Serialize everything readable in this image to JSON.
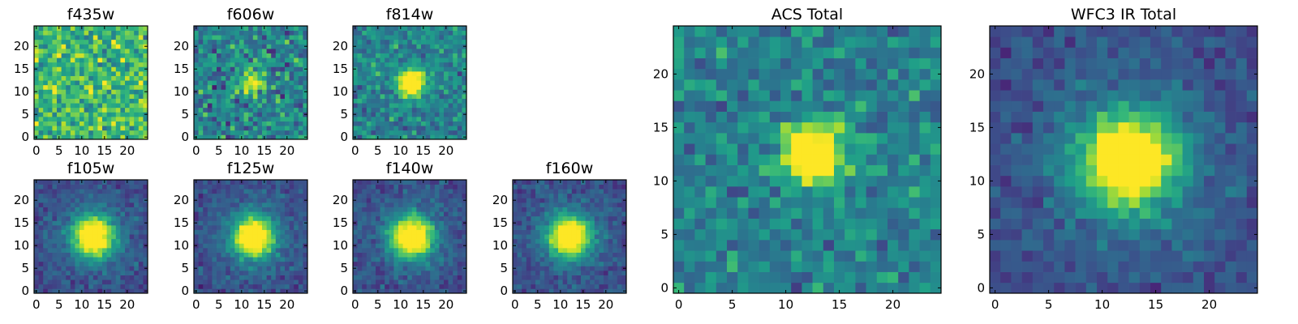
{
  "figure": {
    "colormap": "viridis",
    "pixel_grid": [
      25,
      25
    ]
  },
  "chart_data": [
    {
      "type": "heatmap",
      "title": "f435w",
      "grid": [
        25,
        25
      ],
      "source_center": [
        12.5,
        12.0
      ],
      "source_strength": "none",
      "noise": "high",
      "x_ticks": [
        0,
        5,
        10,
        15,
        20
      ],
      "y_ticks": [
        0,
        5,
        10,
        15,
        20
      ],
      "x_tick_labels": [
        "0",
        "5",
        "10",
        "15",
        "20"
      ],
      "y_tick_labels": [
        "0",
        "5",
        "10",
        "15",
        "20"
      ]
    },
    {
      "type": "heatmap",
      "title": "f606w",
      "grid": [
        25,
        25
      ],
      "source_center": [
        12.5,
        12.0
      ],
      "source_strength": "moderate",
      "noise": "high",
      "x_ticks": [
        0,
        5,
        10,
        15,
        20
      ],
      "y_ticks": [
        0,
        5,
        10,
        15,
        20
      ],
      "x_tick_labels": [
        "0",
        "5",
        "10",
        "15",
        "20"
      ],
      "y_tick_labels": [
        "0",
        "5",
        "10",
        "15",
        "20"
      ]
    },
    {
      "type": "heatmap",
      "title": "f814w",
      "grid": [
        25,
        25
      ],
      "source_center": [
        12.5,
        12.0
      ],
      "source_strength": "strong",
      "noise": "medium",
      "x_ticks": [
        0,
        5,
        10,
        15,
        20
      ],
      "y_ticks": [
        0,
        5,
        10,
        15,
        20
      ],
      "x_tick_labels": [
        "0",
        "5",
        "10",
        "15",
        "20"
      ],
      "y_tick_labels": [
        "0",
        "5",
        "10",
        "15",
        "20"
      ]
    },
    {
      "type": "heatmap",
      "title": "f105w",
      "grid": [
        25,
        25
      ],
      "source_center": [
        12.5,
        12.0
      ],
      "source_strength": "strong",
      "noise": "low",
      "x_ticks": [
        0,
        5,
        10,
        15,
        20
      ],
      "y_ticks": [
        0,
        5,
        10,
        15,
        20
      ],
      "x_tick_labels": [
        "0",
        "5",
        "10",
        "15",
        "20"
      ],
      "y_tick_labels": [
        "0",
        "5",
        "10",
        "15",
        "20"
      ]
    },
    {
      "type": "heatmap",
      "title": "f125w",
      "grid": [
        25,
        25
      ],
      "source_center": [
        12.5,
        12.0
      ],
      "source_strength": "strong",
      "noise": "low",
      "x_ticks": [
        0,
        5,
        10,
        15,
        20
      ],
      "y_ticks": [
        0,
        5,
        10,
        15,
        20
      ],
      "x_tick_labels": [
        "0",
        "5",
        "10",
        "15",
        "20"
      ],
      "y_tick_labels": [
        "0",
        "5",
        "10",
        "15",
        "20"
      ]
    },
    {
      "type": "heatmap",
      "title": "f140w",
      "grid": [
        25,
        25
      ],
      "source_center": [
        12.5,
        12.0
      ],
      "source_strength": "strong",
      "noise": "low",
      "x_ticks": [
        0,
        5,
        10,
        15,
        20
      ],
      "y_ticks": [
        0,
        5,
        10,
        15,
        20
      ],
      "x_tick_labels": [
        "0",
        "5",
        "10",
        "15",
        "20"
      ],
      "y_tick_labels": [
        "0",
        "5",
        "10",
        "15",
        "20"
      ]
    },
    {
      "type": "heatmap",
      "title": "f160w",
      "grid": [
        25,
        25
      ],
      "source_center": [
        12.0,
        12.0
      ],
      "source_strength": "strong",
      "noise": "low",
      "x_ticks": [
        0,
        5,
        10,
        15,
        20
      ],
      "y_ticks": [
        0,
        5,
        10,
        15,
        20
      ],
      "x_tick_labels": [
        "0",
        "5",
        "10",
        "15",
        "20"
      ],
      "y_tick_labels": [
        "0",
        "5",
        "10",
        "15",
        "20"
      ]
    },
    {
      "type": "heatmap",
      "title": "ACS Total",
      "grid": [
        25,
        25
      ],
      "source_center": [
        12.5,
        12.5
      ],
      "source_strength": "strong",
      "noise": "medium",
      "x_ticks": [
        0,
        5,
        10,
        15,
        20
      ],
      "y_ticks": [
        0,
        5,
        10,
        15,
        20
      ],
      "x_tick_labels": [
        "0",
        "5",
        "10",
        "15",
        "20"
      ],
      "y_tick_labels": [
        "0",
        "5",
        "10",
        "15",
        "20"
      ]
    },
    {
      "type": "heatmap",
      "title": "WFC3 IR Total",
      "grid": [
        25,
        25
      ],
      "source_center": [
        12.5,
        12.0
      ],
      "source_strength": "strong",
      "noise": "low",
      "x_ticks": [
        0,
        5,
        10,
        15,
        20
      ],
      "y_ticks": [
        0,
        5,
        10,
        15,
        20
      ],
      "x_tick_labels": [
        "0",
        "5",
        "10",
        "15",
        "20"
      ],
      "y_tick_labels": [
        "0",
        "5",
        "10",
        "15",
        "20"
      ]
    }
  ]
}
